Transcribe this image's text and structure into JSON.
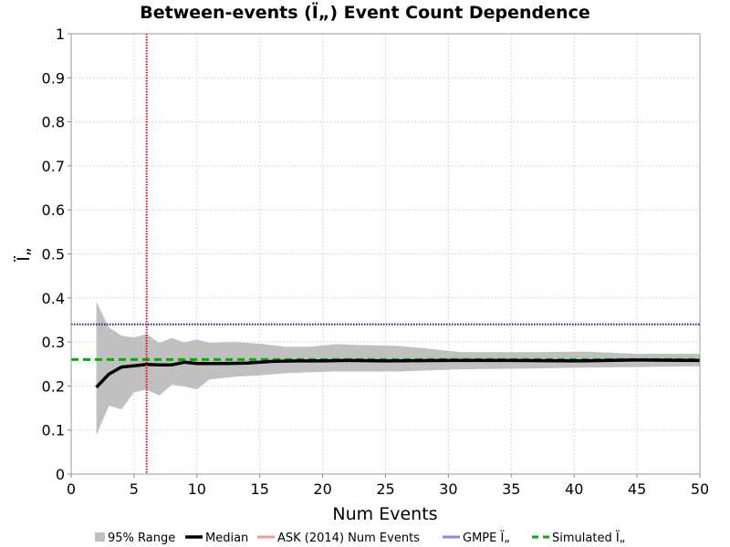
{
  "chart_data": {
    "type": "line",
    "title": "Between-events (Ï„) Event Count Dependence",
    "xlabel": "Num Events",
    "ylabel": "Ï„",
    "xlim": [
      0,
      50
    ],
    "ylim": [
      0,
      1
    ],
    "xticks": [
      "0",
      "5",
      "10",
      "15",
      "20",
      "25",
      "30",
      "35",
      "40",
      "45",
      "50"
    ],
    "yticks": [
      "0",
      "0.1",
      "0.2",
      "0.3",
      "0.4",
      "0.5",
      "0.6",
      "0.7",
      "0.8",
      "0.9",
      "1"
    ],
    "grid": true,
    "legend_position": "bottom",
    "colors": {
      "range": "#c0c0c0",
      "median": "#000000",
      "ask": "#e8000c",
      "gmpe": "#1a1a8c",
      "simulated": "#00b000"
    },
    "legend": [
      {
        "key": "range",
        "label": "95% Range"
      },
      {
        "key": "median",
        "label": "Median"
      },
      {
        "key": "ask",
        "label": "ASK (2014) Num Events"
      },
      {
        "key": "gmpe",
        "label": "GMPE Ï„"
      },
      {
        "key": "simulated",
        "label": "Simulated Ï„"
      }
    ],
    "series": [
      {
        "name": "95% Range",
        "x": [
          2,
          3,
          4,
          5,
          6,
          7,
          8,
          9,
          10,
          11,
          13,
          15,
          17,
          19,
          21,
          23,
          26,
          28,
          31,
          34,
          37,
          41,
          45,
          50
        ],
        "lower": [
          0.088,
          0.155,
          0.147,
          0.186,
          0.192,
          0.178,
          0.203,
          0.199,
          0.192,
          0.215,
          0.221,
          0.224,
          0.229,
          0.231,
          0.233,
          0.233,
          0.233,
          0.235,
          0.238,
          0.239,
          0.24,
          0.242,
          0.243,
          0.245
        ],
        "upper": [
          0.392,
          0.333,
          0.314,
          0.31,
          0.318,
          0.298,
          0.309,
          0.299,
          0.306,
          0.298,
          0.3,
          0.296,
          0.289,
          0.289,
          0.295,
          0.293,
          0.291,
          0.286,
          0.277,
          0.277,
          0.277,
          0.278,
          0.273,
          0.273
        ]
      },
      {
        "name": "Median",
        "x": [
          2,
          3,
          4,
          5,
          6,
          7,
          8,
          9,
          10,
          12,
          14,
          16,
          18,
          20,
          22,
          25,
          30,
          35,
          40,
          45,
          50
        ],
        "y": [
          0.197,
          0.227,
          0.243,
          0.246,
          0.249,
          0.248,
          0.248,
          0.254,
          0.251,
          0.251,
          0.252,
          0.256,
          0.257,
          0.257,
          0.258,
          0.257,
          0.258,
          0.258,
          0.257,
          0.259,
          0.258
        ]
      },
      {
        "name": "ASK (2014) Num Events",
        "x_value": 6
      },
      {
        "name": "GMPE Ï„",
        "y_value": 0.34
      },
      {
        "name": "Simulated Ï„",
        "y_value": 0.26
      }
    ]
  }
}
